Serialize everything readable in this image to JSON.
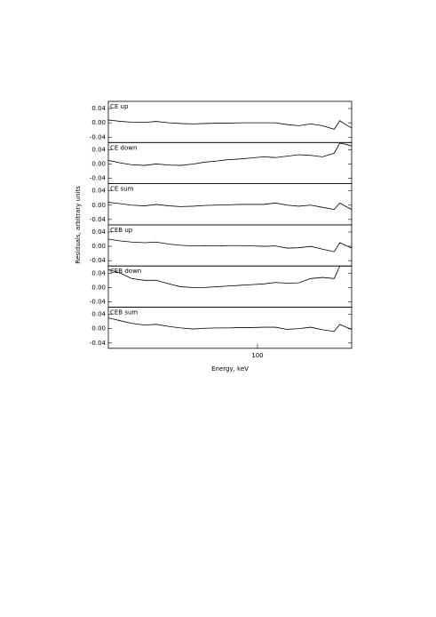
{
  "chart_data": [
    {
      "type": "line",
      "title": "CE up",
      "ylabel": "Residuals, arbitrary units",
      "xscale": "log",
      "color": "#000000",
      "x": [
        25,
        28,
        31,
        35,
        39,
        44,
        49,
        55,
        61,
        68,
        76,
        85,
        95,
        106,
        118,
        132,
        147,
        164,
        183,
        204,
        215,
        228,
        240
      ],
      "values": [
        0.008,
        0.004,
        0.002,
        0.001,
        0.004,
        0.0,
        -0.002,
        -0.003,
        -0.002,
        -0.001,
        -0.001,
        0.0,
        0.0,
        0.0,
        0.0,
        -0.005,
        -0.008,
        -0.003,
        -0.008,
        -0.018,
        0.006,
        -0.006,
        -0.014
      ],
      "xlim": [
        25,
        240
      ],
      "ylim": [
        -0.055,
        0.06
      ],
      "yticks": [
        0.04,
        {
          "value": 0,
          "label": "0.00"
        },
        -0.04
      ]
    },
    {
      "type": "line",
      "title": "CE down",
      "xscale": "log",
      "color": "#000000",
      "x": [
        25,
        28,
        31,
        35,
        39,
        44,
        49,
        55,
        61,
        68,
        76,
        85,
        95,
        106,
        118,
        132,
        147,
        164,
        183,
        204,
        215,
        228,
        240
      ],
      "values": [
        0.01,
        0.003,
        -0.002,
        -0.004,
        0.0,
        -0.003,
        -0.004,
        0.0,
        0.005,
        0.008,
        0.012,
        0.014,
        0.017,
        0.02,
        0.018,
        0.022,
        0.026,
        0.024,
        0.02,
        0.03,
        0.058,
        0.055,
        0.05
      ],
      "xlim": [
        25,
        240
      ],
      "ylim": [
        -0.055,
        0.06
      ],
      "yticks": [
        0.04,
        {
          "value": 0,
          "label": "0.00"
        },
        -0.04
      ]
    },
    {
      "type": "line",
      "title": "CE sum",
      "xscale": "log",
      "color": "#000000",
      "x": [
        25,
        28,
        31,
        35,
        39,
        44,
        49,
        55,
        61,
        68,
        76,
        85,
        95,
        106,
        118,
        132,
        147,
        164,
        183,
        204,
        215,
        228,
        240
      ],
      "values": [
        0.008,
        0.004,
        0.0,
        -0.002,
        0.002,
        -0.002,
        -0.004,
        -0.003,
        -0.001,
        0.0,
        0.001,
        0.002,
        0.002,
        0.002,
        0.006,
        0.0,
        -0.003,
        0.0,
        -0.006,
        -0.012,
        0.006,
        -0.004,
        -0.012
      ],
      "xlim": [
        25,
        240
      ],
      "ylim": [
        -0.055,
        0.06
      ],
      "yticks": [
        0.04,
        {
          "value": 0,
          "label": "0.00"
        },
        -0.04
      ]
    },
    {
      "type": "line",
      "title": "CEB up",
      "xscale": "log",
      "color": "#000000",
      "x": [
        25,
        28,
        31,
        35,
        39,
        44,
        49,
        55,
        61,
        68,
        76,
        85,
        95,
        106,
        118,
        132,
        147,
        164,
        183,
        204,
        215,
        228,
        240
      ],
      "values": [
        0.02,
        0.015,
        0.012,
        0.01,
        0.012,
        0.006,
        0.003,
        0.001,
        0.002,
        0.001,
        0.002,
        0.002,
        0.001,
        0.0,
        0.001,
        -0.005,
        -0.004,
        0.0,
        -0.008,
        -0.015,
        0.01,
        0.002,
        -0.005
      ],
      "xlim": [
        25,
        240
      ],
      "ylim": [
        -0.055,
        0.06
      ],
      "yticks": [
        0.04,
        {
          "value": 0,
          "label": "0.00"
        },
        -0.04
      ]
    },
    {
      "type": "line",
      "title": "CEB down",
      "xscale": "log",
      "color": "#000000",
      "x": [
        25,
        28,
        31,
        35,
        39,
        44,
        49,
        55,
        61,
        68,
        76,
        85,
        95,
        106,
        118,
        132,
        147,
        164,
        183,
        204,
        215,
        228,
        240
      ],
      "values": [
        0.05,
        0.04,
        0.025,
        0.02,
        0.02,
        0.01,
        0.002,
        0.0,
        0.0,
        0.002,
        0.004,
        0.006,
        0.008,
        0.01,
        0.014,
        0.012,
        0.013,
        0.025,
        0.028,
        0.025,
        0.06,
        0.06,
        0.06
      ],
      "xlim": [
        25,
        240
      ],
      "ylim": [
        -0.055,
        0.06
      ],
      "yticks": [
        0.04,
        {
          "value": 0,
          "label": "0.00"
        },
        -0.04
      ]
    },
    {
      "type": "line",
      "title": "CEB sum",
      "xlabel": "Energy, keV",
      "xscale": "log",
      "color": "#000000",
      "x": [
        25,
        28,
        31,
        35,
        39,
        44,
        49,
        55,
        61,
        68,
        76,
        85,
        95,
        106,
        118,
        132,
        147,
        164,
        183,
        204,
        215,
        228,
        240
      ],
      "values": [
        0.03,
        0.022,
        0.015,
        0.01,
        0.012,
        0.006,
        0.002,
        -0.001,
        0.001,
        0.002,
        0.002,
        0.003,
        0.003,
        0.004,
        0.004,
        -0.002,
        0.0,
        0.004,
        -0.003,
        -0.008,
        0.012,
        0.004,
        -0.002
      ],
      "xlim": [
        25,
        240
      ],
      "ylim": [
        -0.055,
        0.06
      ],
      "yticks": [
        0.04,
        {
          "value": 0,
          "label": "0.00"
        },
        -0.04
      ],
      "xticks": [
        100
      ]
    }
  ]
}
